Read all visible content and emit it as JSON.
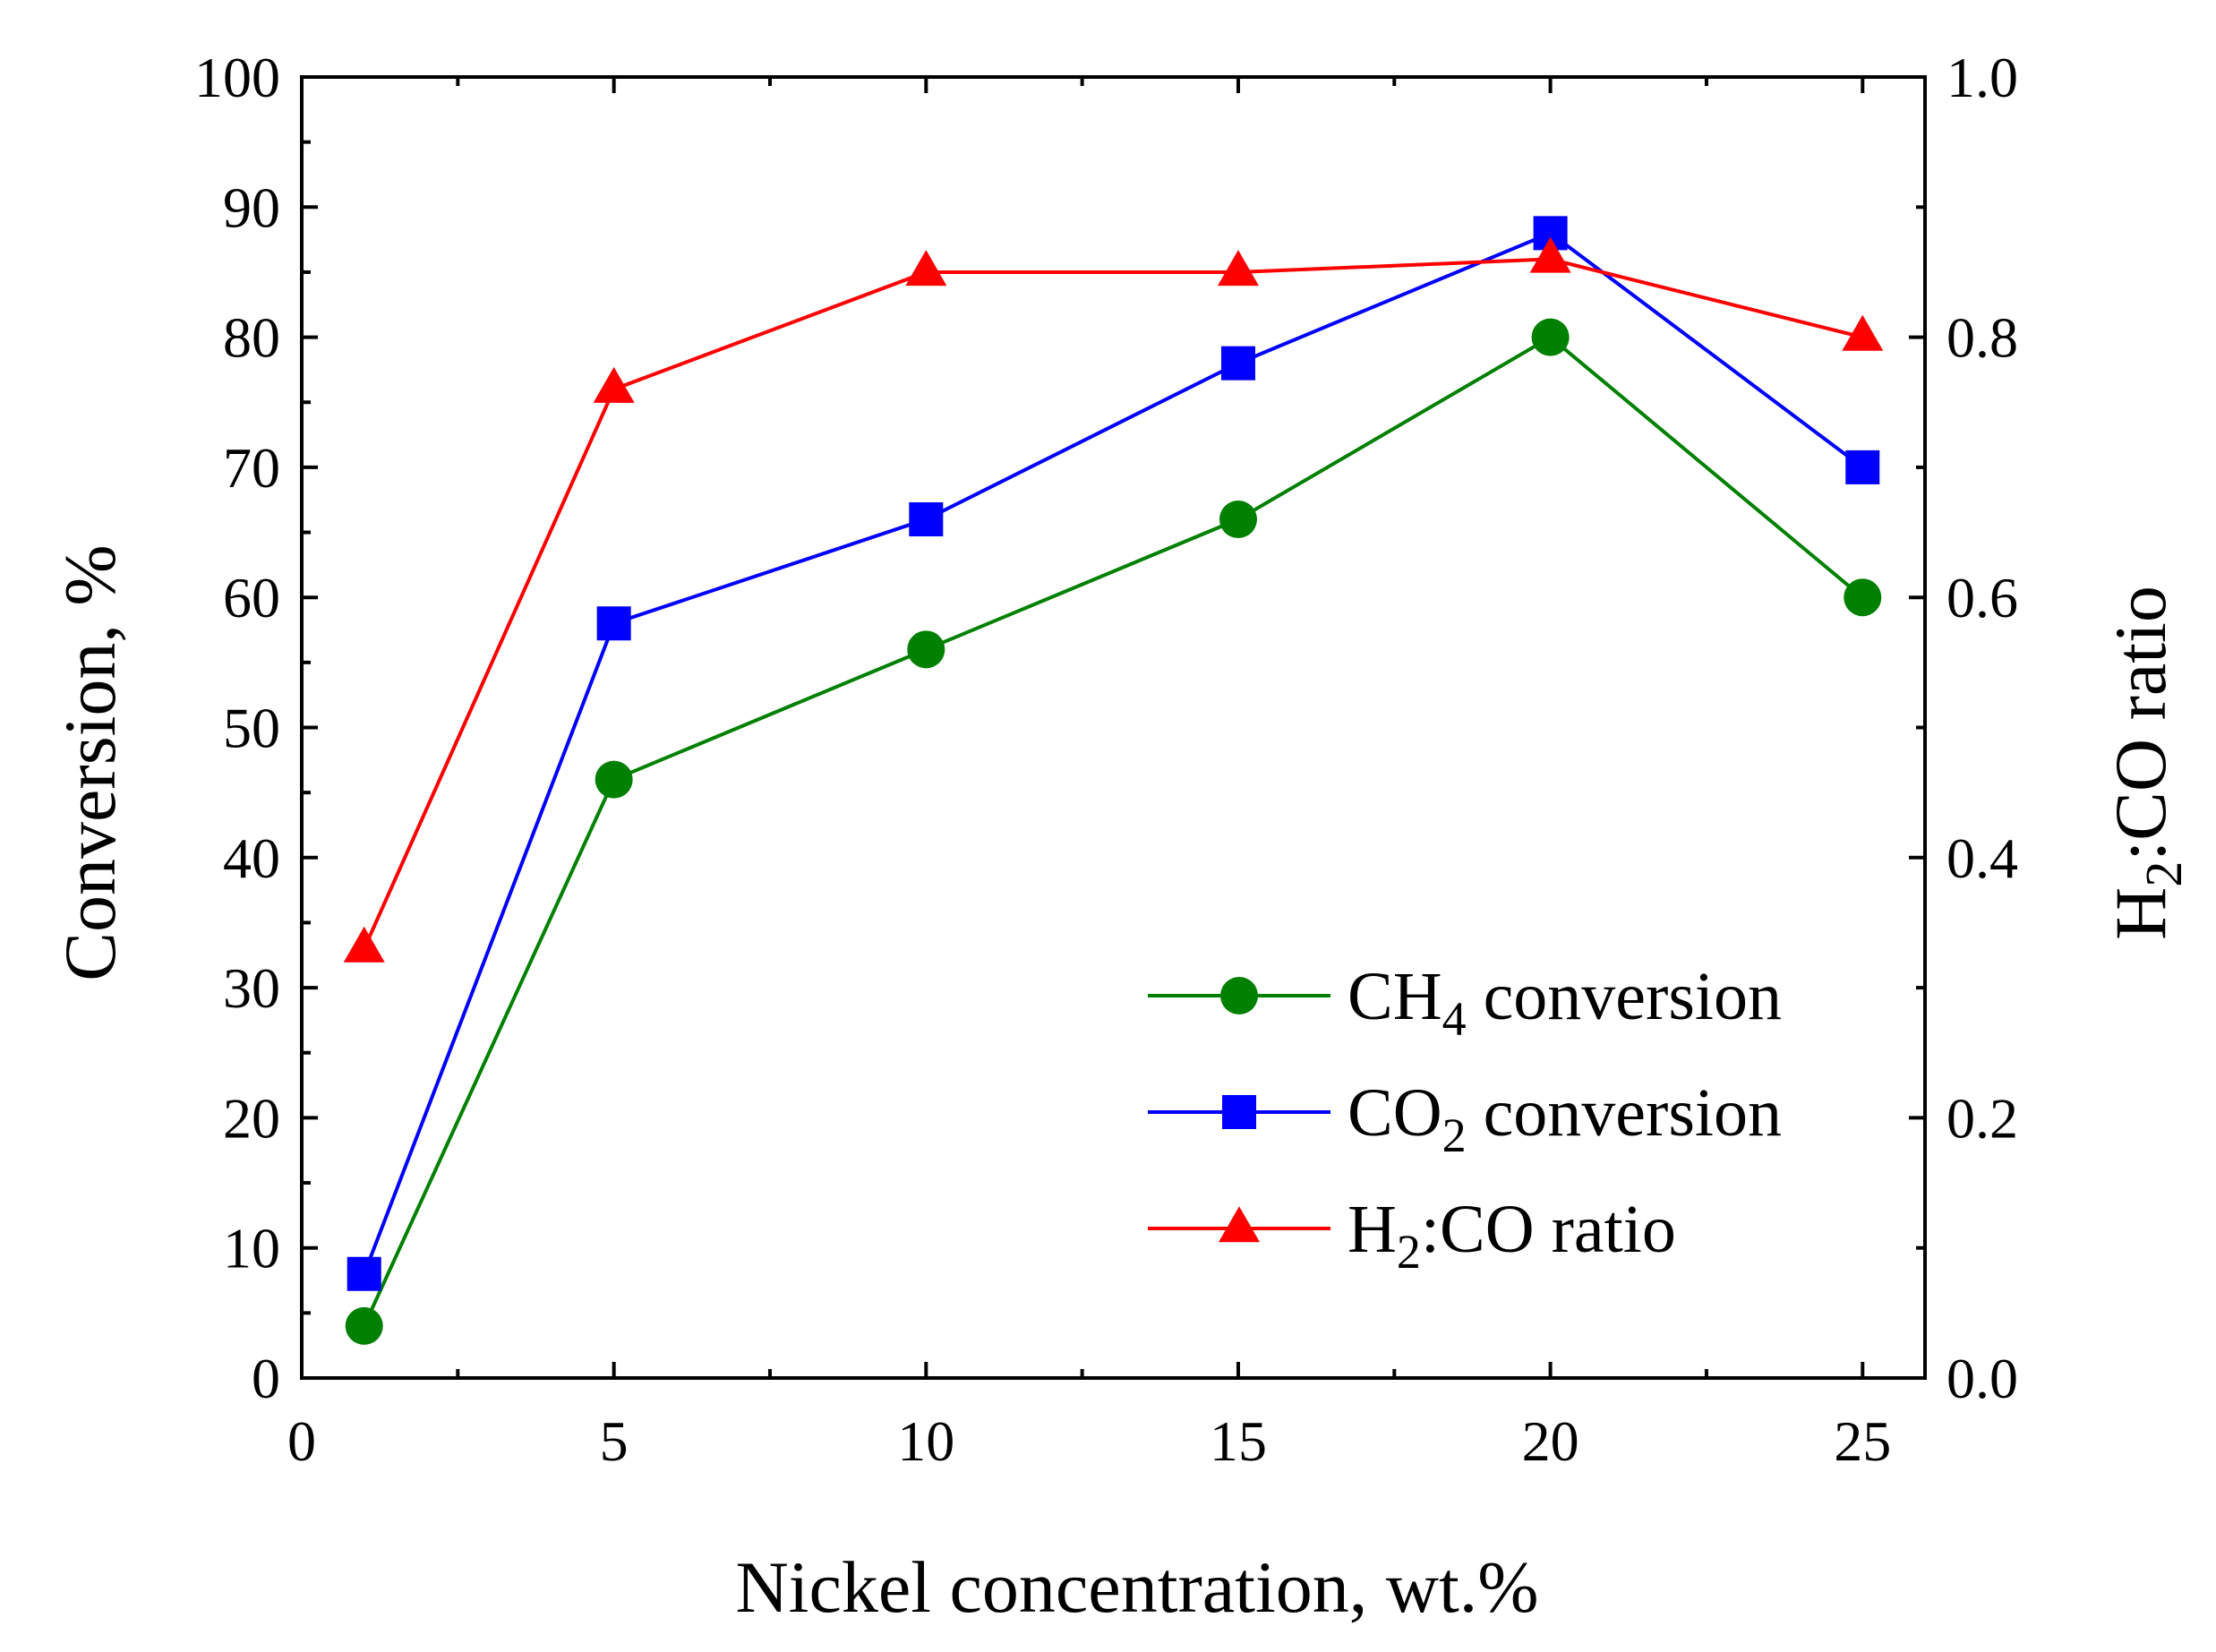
{
  "chart_data": {
    "type": "line",
    "xlabel": "Nickel concentration, wt.%",
    "ylabel_left": "Conversion, %",
    "ylabel_right": {
      "main": "H",
      "sub": "2",
      "rest": ":CO ratio"
    },
    "xlim": [
      0,
      26
    ],
    "ylim_left": [
      0,
      100
    ],
    "ylim_right": [
      0.0,
      1.0
    ],
    "x_ticks": [
      0,
      5,
      10,
      15,
      20,
      25
    ],
    "x_tick_labels": [
      "0",
      "5",
      "10",
      "15",
      "20",
      "25"
    ],
    "y_left_ticks": [
      0,
      10,
      20,
      30,
      40,
      50,
      60,
      70,
      80,
      90,
      100
    ],
    "y_left_tick_labels": [
      "0",
      "10",
      "20",
      "30",
      "40",
      "50",
      "60",
      "70",
      "80",
      "90",
      "100"
    ],
    "y_right_ticks": [
      0.0,
      0.2,
      0.4,
      0.6,
      0.8,
      1.0
    ],
    "y_right_tick_labels": [
      "0.0",
      "0.2",
      "0.4",
      "0.6",
      "0.8",
      "1.0"
    ],
    "grid": false,
    "legend_position": "bottom-right",
    "series": [
      {
        "legend": {
          "main": "CH",
          "sub": "4",
          "rest": " conversion"
        },
        "axis": "left",
        "marker": "circle",
        "color": "#008000",
        "x": [
          1,
          5,
          10,
          15,
          20,
          25
        ],
        "y": [
          4,
          46,
          56,
          66,
          80,
          60
        ]
      },
      {
        "legend": {
          "main": "CO",
          "sub": "2",
          "rest": " conversion"
        },
        "axis": "left",
        "marker": "square",
        "color": "#0000ff",
        "x": [
          1,
          5,
          10,
          15,
          20,
          25
        ],
        "y": [
          8,
          58,
          66,
          78,
          88,
          70
        ]
      },
      {
        "legend": {
          "main": "H",
          "sub": "2",
          "rest": ":CO ratio"
        },
        "axis": "right",
        "marker": "triangle",
        "color": "#ff0000",
        "x": [
          1,
          5,
          10,
          15,
          20,
          25
        ],
        "y": [
          0.33,
          0.76,
          0.85,
          0.85,
          0.86,
          0.8
        ]
      }
    ]
  }
}
